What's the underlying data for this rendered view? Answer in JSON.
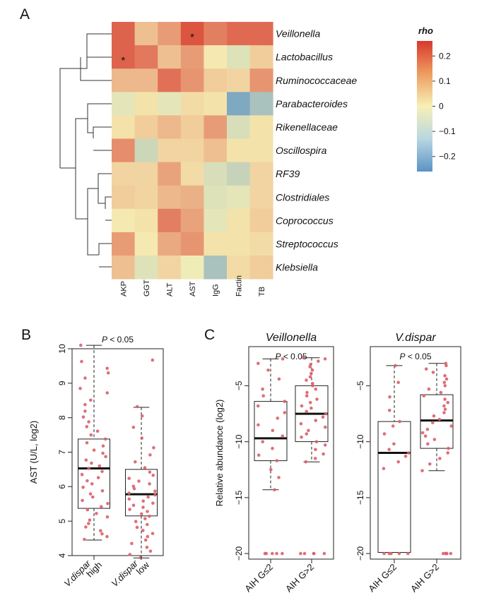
{
  "panel_letters": [
    "A",
    "B",
    "C"
  ],
  "chart_data": [
    {
      "type": "heatmap",
      "panel": "A",
      "rows": [
        "Veillonella",
        "Lactobacillus",
        "Ruminococcaceae",
        "Parabacteroides",
        "Rikenellaceae",
        "Oscillospira",
        "RF39",
        "Clostridiales",
        "Coprococcus",
        "Streptococcus",
        "Klebsiella"
      ],
      "columns": [
        "AKP",
        "GGT",
        "ALT",
        "AST",
        "IgG",
        "Factin",
        "TB"
      ],
      "values": [
        [
          0.2,
          0.07,
          0.12,
          0.22,
          0.16,
          0.19,
          0.19
        ],
        [
          0.2,
          0.17,
          0.07,
          0.12,
          0.01,
          -0.04,
          0.05
        ],
        [
          0.08,
          0.08,
          0.18,
          0.13,
          0.05,
          0.04,
          0.13
        ],
        [
          -0.03,
          0.02,
          -0.03,
          0.03,
          0.02,
          -0.2,
          -0.13
        ],
        [
          0.02,
          0.05,
          0.08,
          0.05,
          0.12,
          -0.05,
          0.02
        ],
        [
          0.14,
          -0.07,
          0.04,
          0.04,
          0.07,
          0.02,
          0.02
        ],
        [
          0.04,
          0.04,
          0.11,
          0.03,
          -0.05,
          -0.08,
          0.04
        ],
        [
          0.05,
          0.04,
          0.08,
          0.09,
          -0.04,
          -0.03,
          0.04
        ],
        [
          0.01,
          0.02,
          0.16,
          0.11,
          -0.03,
          0.02,
          0.05
        ],
        [
          0.12,
          0.01,
          0.1,
          0.13,
          0.02,
          0.02,
          0.03
        ],
        [
          0.07,
          -0.04,
          0.04,
          -0.01,
          -0.13,
          0.03,
          0.05
        ]
      ],
      "significant": [
        [
          0,
          3
        ],
        [
          1,
          0
        ]
      ],
      "significance_mark": "*",
      "legend": {
        "title": "rho",
        "ticks": [
          0.2,
          0.1,
          0,
          -0.1,
          -0.2
        ],
        "tick_labels": [
          "0.2",
          "0.1",
          "0",
          "−0.1",
          "−0.2"
        ],
        "range": [
          -0.26,
          0.26
        ]
      },
      "colors": {
        "low": "#5b93c4",
        "mid": "#f6f0b6",
        "high": "#d7392c"
      }
    },
    {
      "type": "boxplot",
      "panel": "B",
      "annotation": {
        "prefix": "P",
        "rest": " < 0.05"
      },
      "ylabel": "AST (U/L, log2)",
      "ylim": [
        4,
        10
      ],
      "yticks": [
        4,
        5,
        6,
        7,
        8,
        9,
        10
      ],
      "categories": [
        {
          "line1": "V.dispar",
          "line2": "high"
        },
        {
          "line1": "V.dispar",
          "line2": "low"
        }
      ],
      "boxes": [
        {
          "q1": 5.37,
          "median": 6.53,
          "q3": 7.38,
          "lower_whisker": 4.45,
          "upper_whisker": 10.1,
          "points": [
            10.1,
            9.63,
            9.43,
            9.3,
            9.15,
            8.85,
            8.72,
            8.51,
            8.38,
            8.19,
            8.02,
            7.88,
            7.74,
            7.61,
            7.5,
            7.38,
            7.27,
            7.18,
            7.06,
            6.97,
            6.87,
            6.77,
            6.68,
            6.6,
            6.53,
            6.44,
            6.35,
            6.26,
            6.17,
            6.08,
            5.98,
            5.88,
            5.79,
            5.7,
            5.6,
            5.51,
            5.42,
            5.33,
            5.22,
            5.12,
            5.03,
            4.93,
            4.83,
            4.72,
            4.63,
            4.55,
            4.47
          ]
        },
        {
          "q1": 5.15,
          "median": 5.78,
          "q3": 6.5,
          "lower_whisker": 3.93,
          "upper_whisker": 8.3,
          "points": [
            9.67,
            8.32,
            8.05,
            7.72,
            7.41,
            7.13,
            6.92,
            6.72,
            6.55,
            6.42,
            6.33,
            6.24,
            6.16,
            6.08,
            6.01,
            5.94,
            5.87,
            5.81,
            5.76,
            5.7,
            5.64,
            5.58,
            5.52,
            5.46,
            5.4,
            5.34,
            5.28,
            5.21,
            5.14,
            5.07,
            4.99,
            4.9,
            4.82,
            4.73,
            4.64,
            4.55,
            4.45,
            4.35,
            4.24,
            4.13,
            4.03,
            3.94
          ]
        }
      ]
    },
    {
      "type": "boxplot",
      "panel": "C",
      "title": "Veillonella",
      "annotation": {
        "prefix": "P",
        "rest": " < 0.05"
      },
      "ylabel": "Relative abundance (log2)",
      "ylim": [
        -20.5,
        -1.5
      ],
      "yticks": [
        -5,
        -10,
        -15,
        -20
      ],
      "categories": [
        {
          "line1": "AIH G≤2"
        },
        {
          "line1": "AIH G>2"
        }
      ],
      "boxes": [
        {
          "q1": -11.7,
          "median": -9.7,
          "q3": -6.4,
          "lower_whisker": -14.3,
          "upper_whisker": -2.6,
          "points": [
            -2.6,
            -3.0,
            -3.6,
            -4.4,
            -5.3,
            -5.9,
            -6.4,
            -6.8,
            -7.4,
            -7.9,
            -8.5,
            -9.0,
            -9.5,
            -10.0,
            -10.6,
            -11.2,
            -11.7,
            -12.5,
            -13.2,
            -14.3,
            -20,
            -20,
            -20,
            -20,
            -20
          ]
        },
        {
          "q1": -10.0,
          "median": -7.5,
          "q3": -5.0,
          "lower_whisker": -11.8,
          "upper_whisker": -2.5,
          "points": [
            -2.5,
            -2.6,
            -2.8,
            -3.1,
            -3.3,
            -3.6,
            -3.9,
            -4.2,
            -4.5,
            -4.8,
            -5.0,
            -5.3,
            -5.6,
            -5.9,
            -6.2,
            -6.5,
            -6.8,
            -7.0,
            -7.3,
            -7.5,
            -7.8,
            -8.1,
            -8.4,
            -8.7,
            -9.0,
            -9.3,
            -9.6,
            -10.0,
            -10.3,
            -10.7,
            -11.1,
            -11.5,
            -11.8,
            -20,
            -20,
            -20,
            -20,
            -20
          ]
        }
      ]
    },
    {
      "type": "boxplot",
      "panel": "C",
      "title": "V.dispar",
      "annotation": {
        "prefix": "P",
        "rest": " < 0.05"
      },
      "ylabel": "",
      "ylim": [
        -20.5,
        -1.5
      ],
      "yticks": [
        -5,
        -10,
        -15,
        -20
      ],
      "categories": [
        {
          "line1": "AIH G≤2"
        },
        {
          "line1": "AIH G>2"
        }
      ],
      "boxes": [
        {
          "q1": -19.9,
          "median": -11.0,
          "q3": -8.2,
          "lower_whisker": -19.9,
          "upper_whisker": -3.2,
          "points": [
            -3.2,
            -4.7,
            -6.0,
            -7.2,
            -8.2,
            -8.6,
            -9.3,
            -10.2,
            -10.7,
            -11.0,
            -11.3,
            -11.8,
            -12.4,
            -20,
            -20,
            -20,
            -20,
            -20
          ]
        },
        {
          "q1": -10.6,
          "median": -8.1,
          "q3": -5.8,
          "lower_whisker": -12.6,
          "upper_whisker": -3.0,
          "points": [
            -3.0,
            -3.2,
            -3.5,
            -3.8,
            -4.1,
            -4.4,
            -4.7,
            -5.0,
            -5.3,
            -5.6,
            -5.9,
            -6.2,
            -6.5,
            -6.8,
            -7.1,
            -7.4,
            -7.7,
            -8.0,
            -8.3,
            -8.6,
            -8.9,
            -9.2,
            -9.5,
            -9.8,
            -10.2,
            -10.6,
            -11.0,
            -11.5,
            -12.0,
            -12.6,
            -20,
            -20,
            -20,
            -20,
            -20
          ]
        }
      ]
    }
  ]
}
